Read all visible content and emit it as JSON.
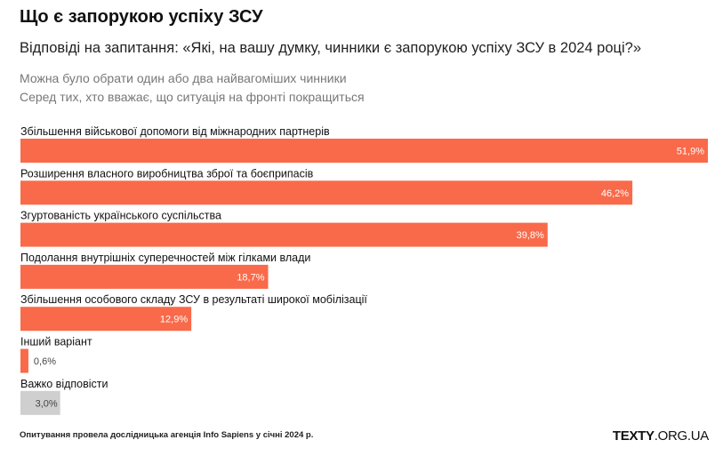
{
  "chart_data": {
    "type": "bar",
    "orientation": "horizontal",
    "title": "Що є запорукою успіху ЗСУ",
    "subtitle": "Відповіді на запитання: «Які, на вашу думку, чинники є запорукою успіху ЗСУ в 2024 році?»",
    "notes": [
      "Можна було обрати один або два найвагоміших чинники",
      "Серед тих, хто вважає, що ситуація на фронті покращиться"
    ],
    "categories": [
      "Збільшення військової допомоги від міжнародних партнерів",
      "Розширення власного виробництва зброї та боєприпасів",
      "Згуртованість українського суспільства",
      "Подолання внутрішніх суперечностей між гілками влади",
      "Збільшення особового складу ЗСУ в результаті широкої мобілізації",
      "Інший варіант",
      "Важко відповісти"
    ],
    "values": [
      51.9,
      46.2,
      39.8,
      18.7,
      12.9,
      0.6,
      3.0
    ],
    "value_labels": [
      "51,9%",
      "46,2%",
      "39,8%",
      "18,7%",
      "12,9%",
      "0,6%",
      "3,0%"
    ],
    "colors": [
      "#f96a4a",
      "#f96a4a",
      "#f96a4a",
      "#f96a4a",
      "#f96a4a",
      "#f96a4a",
      "#cfcfcf"
    ],
    "unit": "%",
    "xlim": [
      0,
      51.9
    ],
    "grid": false,
    "legend": "none"
  },
  "footer": {
    "source": "Опитування провела дослідницька агенція Info Sapiens у січні 2024 р.",
    "brand_bold": "TEXTY",
    "brand_rest": ".ORG.UA"
  }
}
